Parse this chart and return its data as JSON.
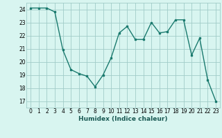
{
  "x": [
    0,
    1,
    2,
    3,
    4,
    5,
    6,
    7,
    8,
    9,
    10,
    11,
    12,
    13,
    14,
    15,
    16,
    17,
    18,
    19,
    20,
    21,
    22,
    23
  ],
  "y": [
    24.1,
    24.1,
    24.1,
    23.8,
    20.9,
    19.4,
    19.1,
    18.9,
    18.1,
    19.0,
    20.3,
    22.2,
    22.7,
    21.7,
    21.7,
    23.0,
    22.2,
    22.3,
    23.2,
    23.2,
    20.5,
    21.8,
    18.6,
    17.0
  ],
  "line_color": "#1a7a6e",
  "marker": "s",
  "marker_size": 2,
  "bg_color": "#d8f5f0",
  "grid_color": "#a0ccc8",
  "xlabel": "Humidex (Indice chaleur)",
  "xlim": [
    -0.5,
    23.5
  ],
  "ylim": [
    16.5,
    24.5
  ],
  "yticks": [
    17,
    18,
    19,
    20,
    21,
    22,
    23,
    24
  ],
  "xticks": [
    0,
    1,
    2,
    3,
    4,
    5,
    6,
    7,
    8,
    9,
    10,
    11,
    12,
    13,
    14,
    15,
    16,
    17,
    18,
    19,
    20,
    21,
    22,
    23
  ],
  "tick_fontsize": 5.5,
  "xlabel_fontsize": 6.5
}
